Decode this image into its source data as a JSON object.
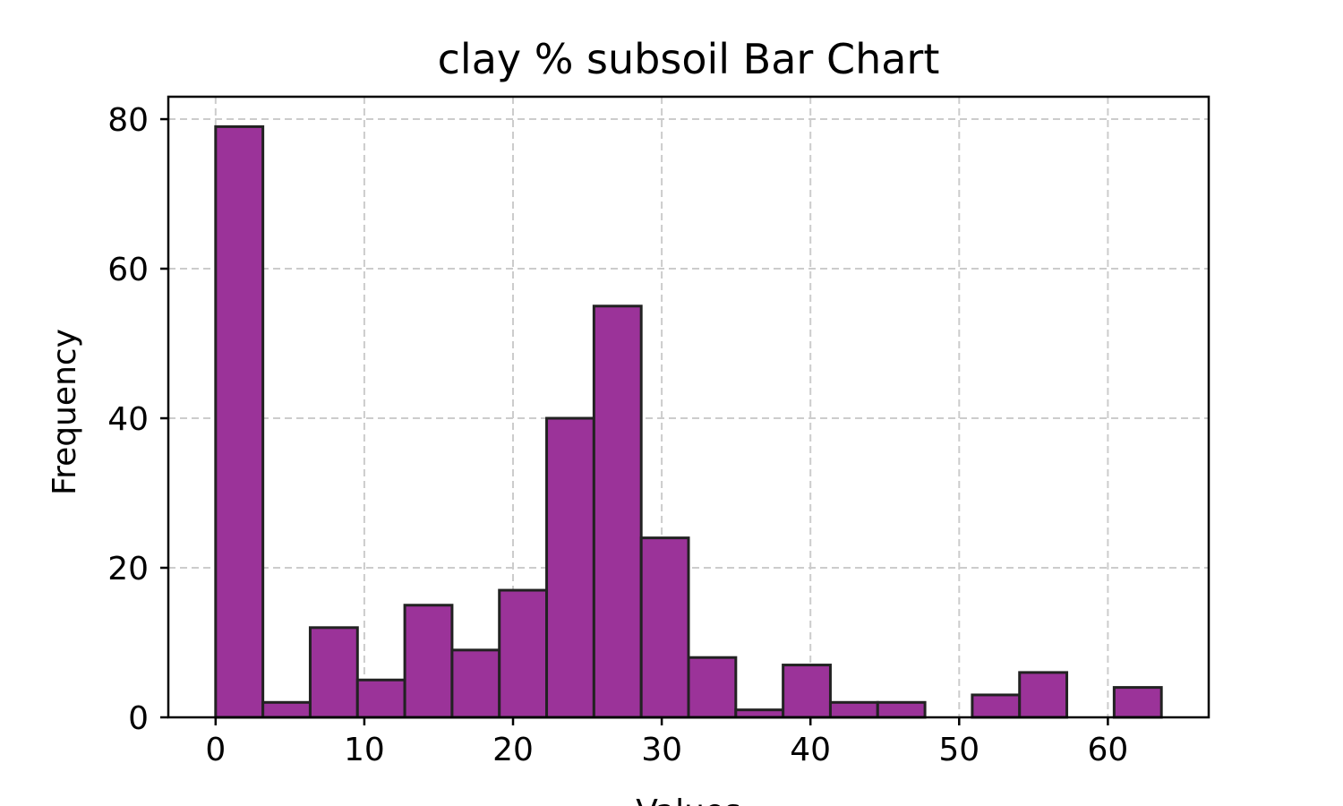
{
  "chart_data": {
    "type": "bar",
    "title": "clay % subsoil Bar Chart",
    "xlabel": "Values",
    "ylabel": "Frequency",
    "bin_edges": [
      0,
      3.18,
      6.36,
      9.54,
      12.72,
      15.9,
      19.08,
      22.26,
      25.44,
      28.62,
      31.8,
      34.98,
      38.16,
      41.34,
      44.52,
      47.7,
      50.88,
      54.06,
      57.24,
      60.42,
      63.6
    ],
    "values": [
      79,
      2,
      12,
      5,
      15,
      9,
      17,
      40,
      55,
      24,
      8,
      1,
      7,
      2,
      2,
      0,
      3,
      6,
      0,
      4
    ],
    "xlim": [
      -3.18,
      66.78
    ],
    "ylim": [
      0,
      83
    ],
    "xticks": [
      0,
      10,
      20,
      30,
      40,
      50,
      60
    ],
    "yticks": [
      0,
      20,
      40,
      60,
      80
    ],
    "grid": true,
    "bar_color": "#9b3399",
    "edge_color": "#222222"
  }
}
